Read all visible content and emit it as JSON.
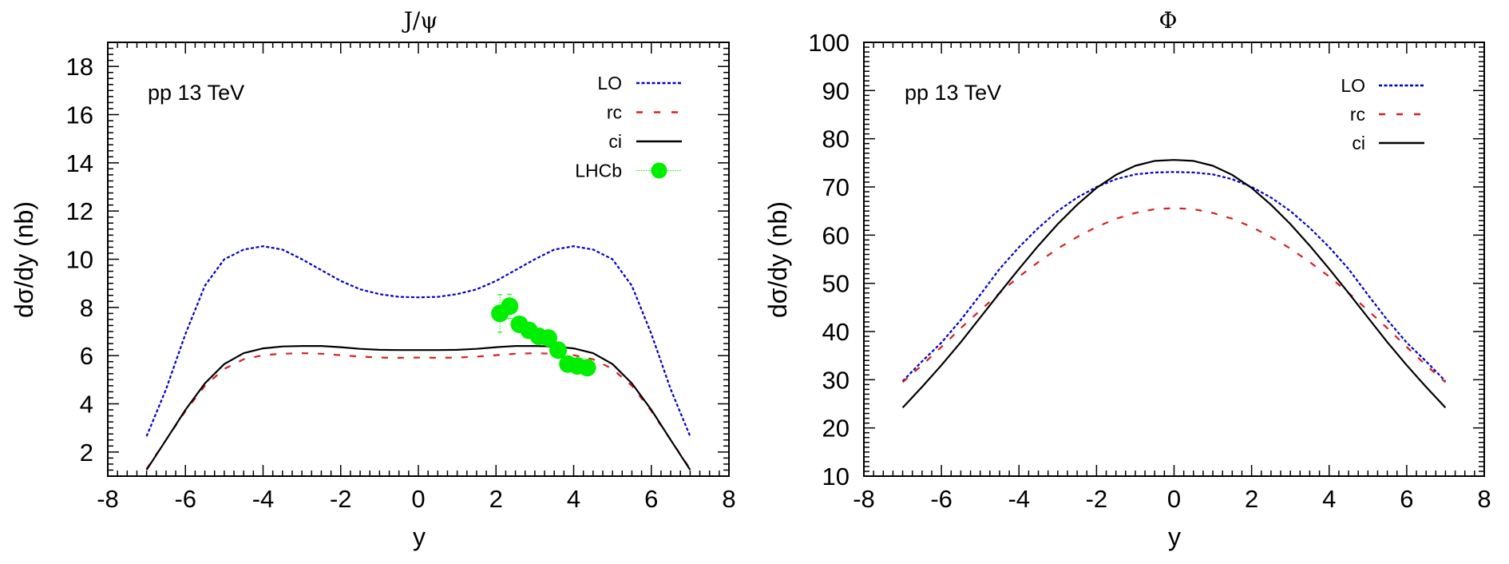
{
  "chart_data": [
    {
      "type": "line",
      "title": "J/ψ",
      "annotation": "pp 13 TeV",
      "xlabel": "y",
      "ylabel": "dσ/dy (nb)",
      "xlim": [
        -8,
        8
      ],
      "ylim": [
        1,
        19
      ],
      "xticks": [
        -8,
        -6,
        -4,
        -2,
        0,
        2,
        4,
        6,
        8
      ],
      "yticks": [
        2,
        4,
        6,
        8,
        10,
        12,
        14,
        16,
        18
      ],
      "grid": false,
      "legend_position": "top-right",
      "series": [
        {
          "name": "LO",
          "color": "#0000c8",
          "style": "dotted",
          "x": [
            -7,
            -6.5,
            -6,
            -5.5,
            -5,
            -4.5,
            -4,
            -3.5,
            -3,
            -2.5,
            -2,
            -1.5,
            -1,
            -0.5,
            0,
            0.5,
            1,
            1.5,
            2,
            2.5,
            3,
            3.5,
            4,
            4.5,
            5,
            5.5,
            6,
            6.5,
            7
          ],
          "y": [
            2.65,
            4.6,
            6.9,
            8.9,
            10.0,
            10.4,
            10.54,
            10.4,
            10.0,
            9.55,
            9.1,
            8.75,
            8.55,
            8.44,
            8.42,
            8.44,
            8.55,
            8.75,
            9.1,
            9.55,
            10.0,
            10.4,
            10.54,
            10.4,
            10.0,
            8.9,
            6.9,
            4.6,
            2.65
          ]
        },
        {
          "name": "rc",
          "color": "#d42020",
          "style": "dashed",
          "x": [
            -7,
            -6.5,
            -6,
            -5.5,
            -5,
            -4.5,
            -4,
            -3.5,
            -3,
            -2.5,
            -2,
            -1.5,
            -1,
            -0.5,
            0,
            0.5,
            1,
            1.5,
            2,
            2.5,
            3,
            3.5,
            4,
            4.5,
            5,
            5.5,
            6,
            6.5,
            7
          ],
          "y": [
            1.3,
            2.5,
            3.7,
            4.75,
            5.45,
            5.85,
            6.02,
            6.08,
            6.1,
            6.08,
            6.02,
            5.96,
            5.92,
            5.91,
            5.92,
            5.91,
            5.92,
            5.96,
            6.02,
            6.08,
            6.1,
            6.08,
            6.02,
            5.85,
            5.45,
            4.75,
            3.7,
            2.5,
            1.3
          ]
        },
        {
          "name": "ci",
          "color": "#000000",
          "style": "solid",
          "x": [
            -7,
            -6.5,
            -6,
            -5.5,
            -5,
            -4.5,
            -4,
            -3.5,
            -3,
            -2.5,
            -2,
            -1.5,
            -1,
            -0.5,
            0,
            0.5,
            1,
            1.5,
            2,
            2.5,
            3,
            3.5,
            4,
            4.5,
            5,
            5.5,
            6,
            6.5,
            7
          ],
          "y": [
            1.26,
            2.5,
            3.75,
            4.85,
            5.65,
            6.1,
            6.3,
            6.38,
            6.4,
            6.4,
            6.35,
            6.28,
            6.24,
            6.23,
            6.23,
            6.23,
            6.24,
            6.28,
            6.35,
            6.4,
            6.4,
            6.38,
            6.3,
            6.1,
            5.65,
            4.85,
            3.75,
            2.5,
            1.26
          ]
        }
      ],
      "points": {
        "name": "LHCb",
        "color": "#00ee00",
        "x": [
          2.1,
          2.35,
          2.6,
          2.85,
          3.1,
          3.35,
          3.6,
          3.85,
          4.1,
          4.35
        ],
        "y": [
          7.75,
          8.05,
          7.3,
          7.05,
          6.8,
          6.73,
          6.23,
          5.65,
          5.57,
          5.5
        ],
        "yerr": [
          0.78,
          0.5,
          0.25,
          0.2,
          0.2,
          0.2,
          0.2,
          0.2,
          0.2,
          0.25
        ]
      }
    },
    {
      "type": "line",
      "title": "Φ",
      "annotation": "pp 13 TeV",
      "xlabel": "y",
      "ylabel": "dσ/dy (nb)",
      "xlim": [
        -8,
        8
      ],
      "ylim": [
        10,
        100
      ],
      "xticks": [
        -8,
        -6,
        -4,
        -2,
        0,
        2,
        4,
        6,
        8
      ],
      "yticks": [
        10,
        20,
        30,
        40,
        50,
        60,
        70,
        80,
        90,
        100
      ],
      "grid": false,
      "legend_position": "top-right",
      "series": [
        {
          "name": "LO",
          "color": "#0000c8",
          "style": "dotted",
          "x": [
            -7,
            -6.5,
            -6,
            -5.5,
            -5,
            -4.5,
            -4,
            -3.5,
            -3,
            -2.5,
            -2,
            -1.5,
            -1,
            -0.5,
            0,
            0.5,
            1,
            1.5,
            2,
            2.5,
            3,
            3.5,
            4,
            4.5,
            5,
            5.5,
            6,
            6.5,
            7
          ],
          "y": [
            29.7,
            33.8,
            37.7,
            42.4,
            47.6,
            53.0,
            57.5,
            61.5,
            65.0,
            67.8,
            70.0,
            71.6,
            72.6,
            73.0,
            73.1,
            73.0,
            72.6,
            71.6,
            70.0,
            67.8,
            65.0,
            61.5,
            57.5,
            53.0,
            47.6,
            42.4,
            37.7,
            33.8,
            29.7
          ]
        },
        {
          "name": "rc",
          "color": "#d42020",
          "style": "dashed",
          "x": [
            -7,
            -6.5,
            -6,
            -5.5,
            -5,
            -4.5,
            -4,
            -3.5,
            -3,
            -2.5,
            -2,
            -1.5,
            -1,
            -0.5,
            0,
            0.5,
            1,
            1.5,
            2,
            2.5,
            3,
            3.5,
            4,
            4.5,
            5,
            5.5,
            6,
            6.5,
            7
          ],
          "y": [
            29.5,
            33.0,
            36.8,
            40.7,
            44.4,
            48.0,
            51.4,
            54.4,
            57.2,
            59.6,
            61.7,
            63.4,
            64.6,
            65.4,
            65.6,
            65.4,
            64.6,
            63.4,
            61.7,
            59.6,
            57.2,
            54.4,
            51.4,
            48.0,
            44.4,
            40.7,
            36.8,
            33.0,
            29.5
          ]
        },
        {
          "name": "ci",
          "color": "#000000",
          "style": "solid",
          "x": [
            -7,
            -6.5,
            -6,
            -5.5,
            -5,
            -4.5,
            -4,
            -3.5,
            -3,
            -2.5,
            -2,
            -1.5,
            -1,
            -0.5,
            0,
            0.5,
            1,
            1.5,
            2,
            2.5,
            3,
            3.5,
            4,
            4.5,
            5,
            5.5,
            6,
            6.5,
            7
          ],
          "y": [
            24.2,
            28.5,
            33.0,
            37.8,
            42.9,
            48.0,
            53.0,
            57.8,
            62.3,
            66.3,
            69.8,
            72.5,
            74.4,
            75.4,
            75.6,
            75.4,
            74.4,
            72.5,
            69.8,
            66.3,
            62.3,
            57.8,
            53.0,
            48.0,
            42.9,
            37.8,
            33.0,
            28.5,
            24.2
          ]
        }
      ]
    }
  ]
}
